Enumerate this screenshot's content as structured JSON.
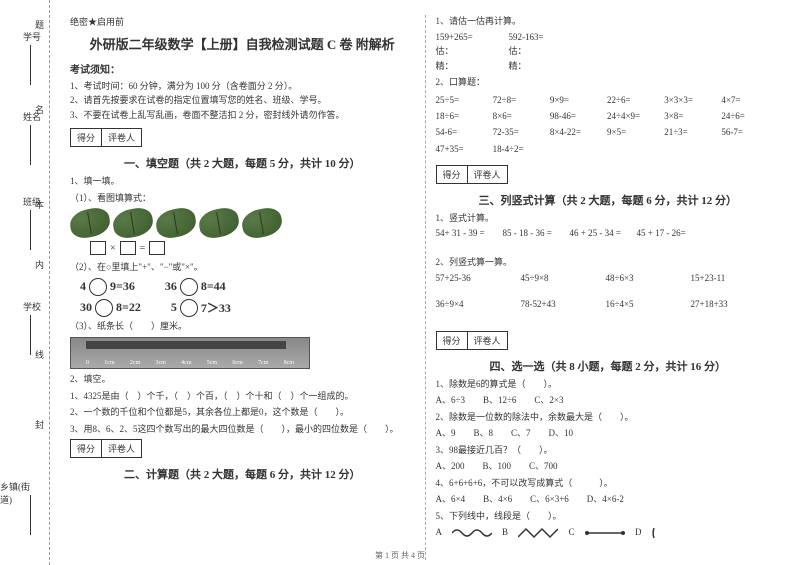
{
  "binding": {
    "labels": [
      "学号",
      "姓名",
      "班级",
      "学校",
      "乡镇(街道)"
    ],
    "markers": [
      "题",
      "名",
      "本",
      "内",
      "线",
      "封"
    ],
    "side_note": "……○……○……密……○……封……○……线……○……"
  },
  "header": {
    "mark": "绝密★启用前",
    "title": "外研版二年级数学【上册】自我检测试题 C 卷 附解析",
    "notice_hdr": "考试须知：",
    "notices": [
      "1、考试时间：60 分钟，满分为 100 分（含卷面分 2 分）。",
      "2、请首先按要求在试卷的指定位置填写您的姓名、班级、学号。",
      "3、不要在试卷上乱写乱画，卷面不整洁扣 2 分，密封线外请勿作答。"
    ]
  },
  "scorebox": {
    "c1": "得分",
    "c2": "评卷人"
  },
  "sections": {
    "s1": "一、填空题（共 2 大题，每题 5 分，共计 10 分）",
    "s2": "二、计算题（共 2 大题，每题 6 分，共计 12 分）",
    "s3": "三、列竖式计算（共 2 大题，每题 6 分，共计 12 分）",
    "s4": "四、选一选（共 8 小题，每题 2 分，共计 16 分）"
  },
  "q1": {
    "hdr": "1、填一填。",
    "p1": "（1）、看图填算式：",
    "eq_ops": [
      "×",
      "="
    ],
    "p2": "（2）、在○里填上\"+\"、\"−\"或\"×\"。",
    "eqs": [
      {
        "a": "4",
        "b": "9=36",
        "c": "36",
        "d": "8=44"
      },
      {
        "a": "30",
        "b": "8=22",
        "c": "5",
        "d": "7＞33"
      }
    ],
    "p3": "（3）、纸条长（　　）厘米。",
    "ruler_marks": [
      "0",
      "1cm",
      "2cm",
      "3cm",
      "4cm",
      "5cm",
      "6cm",
      "7cm",
      "8cm"
    ]
  },
  "q2": {
    "hdr": "2、填空。",
    "lines": [
      "1、4325是由（　）个千，（　）个百，（　）个十和（　）个一组成的。",
      "2、一个数的千位和个位都是5，其余各位上都是0，这个数是（　　）。",
      "3、用8、6、2、5这四个数写出的最大四位数是（　　），最小的四位数是（　　）。"
    ]
  },
  "calc1": {
    "hdr": "1、请估一估再计算。",
    "rows": [
      [
        "159+265=",
        "592-163="
      ],
      [
        "估：",
        "估："
      ],
      [
        "精：",
        "精："
      ]
    ]
  },
  "calc2": {
    "hdr": "2、口算题：",
    "items": [
      "25÷5=",
      "72÷8=",
      "9×9=",
      "22÷6=",
      "3×3×3=",
      "4×7=",
      "18÷6=",
      "8×6=",
      "98-46=",
      "24÷4×9=",
      "3×8=",
      "24÷6=",
      "54-6=",
      "72-35=",
      "8×4-22=",
      "9×5=",
      "21÷3=",
      "56-7=",
      "47+35=",
      "18-4÷2="
    ]
  },
  "calc3": {
    "hdr": "1、竖式计算。",
    "row": [
      "54+ 31 - 39 =",
      "85 - 18 - 36 =",
      "46 + 25 - 34 =",
      "45 + 17 - 26="
    ]
  },
  "calc4": {
    "hdr": "2、列竖式算一算。",
    "rows": [
      [
        "57+25-36",
        "45÷9×8",
        "48÷6×3",
        "15+23-11"
      ],
      [
        "36÷9×4",
        "78-52+43",
        "16÷4×5",
        "27+18+33"
      ]
    ]
  },
  "choice": {
    "q1": "1、除数是6的算式是（　　）。",
    "q1o": "A、6÷3　　B、12÷6　　C、2×3",
    "q2": "2、除数是一位数的除法中，余数最大是（　　）。",
    "q2o": "A、9　　B、8　　C、7　　D、10",
    "q3": "3、98最接近几百？（　　）。",
    "q3o": "A、200　　B、100　　C、700",
    "q4": "4、6+6+6+6，不可以改写成算式（　　　）。",
    "q4o": "A、6×4　　B、4×6　　C、6×3+6　　D、4×6-2",
    "q5": "5、下列线中，线段是（　　）。",
    "opts": [
      "A",
      "B",
      "C",
      "D"
    ]
  },
  "footer": "第 1 页 共 4 页"
}
